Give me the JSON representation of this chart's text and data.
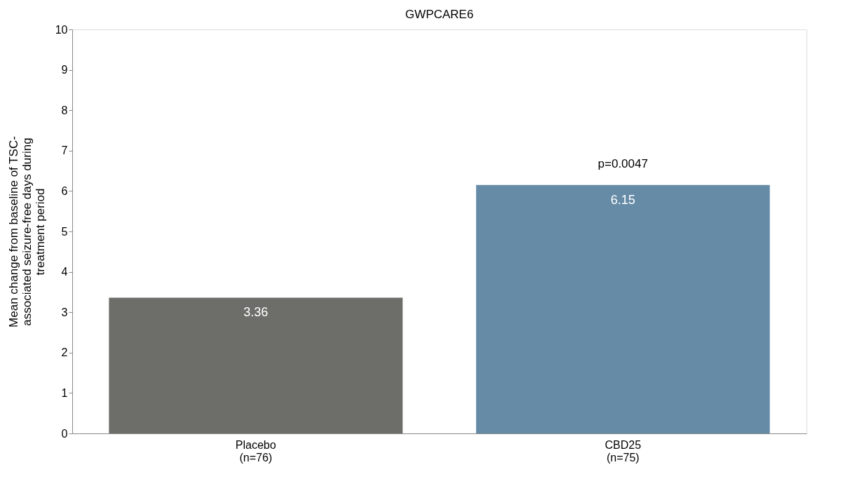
{
  "chart_data": {
    "type": "bar",
    "title": "GWPCARE6",
    "ylabel": "Mean change from baseline of TSC-\nassociated seizure-free days during\ntreatment period",
    "categories": [
      "Placebo\n(n=76)",
      "CBD25\n(n=75)"
    ],
    "values": [
      3.36,
      6.15
    ],
    "colors": [
      "#6d6d69",
      "#668ba7"
    ],
    "data_labels": true,
    "annotations": [
      {
        "text": "p=0.0047",
        "x": "CBD25\n(n=75)",
        "y": 6.15
      }
    ],
    "ylim": [
      0,
      10
    ],
    "yticks": [
      0,
      1,
      2,
      3,
      4,
      5,
      6,
      7,
      8,
      9,
      10
    ],
    "grid": false
  }
}
